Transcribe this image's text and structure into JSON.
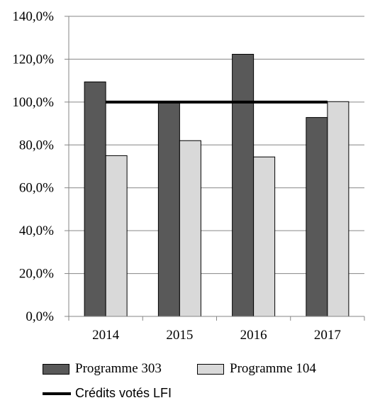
{
  "chart_data": {
    "type": "bar",
    "categories": [
      "2014",
      "2015",
      "2016",
      "2017"
    ],
    "series": [
      {
        "name": "Programme 303",
        "values": [
          109.4,
          100.0,
          122.3,
          92.8
        ],
        "color": "#595959"
      },
      {
        "name": "Programme 104",
        "values": [
          75.0,
          82.0,
          74.4,
          100.2
        ],
        "color": "#d9d9d9"
      }
    ],
    "reference_line": {
      "name": "Crédits votés LFI",
      "value": 100.0,
      "color": "#000000"
    },
    "ylim": [
      0,
      140
    ],
    "yticks": [
      "0,0%",
      "20,0%",
      "40,0%",
      "60,0%",
      "80,0%",
      "100,0%",
      "120,0%",
      "140,0%"
    ],
    "ytick_values": [
      0,
      20,
      40,
      60,
      80,
      100,
      120,
      140
    ],
    "title": "",
    "xlabel": "",
    "ylabel": "",
    "grid": true,
    "legend_position": "bottom"
  }
}
